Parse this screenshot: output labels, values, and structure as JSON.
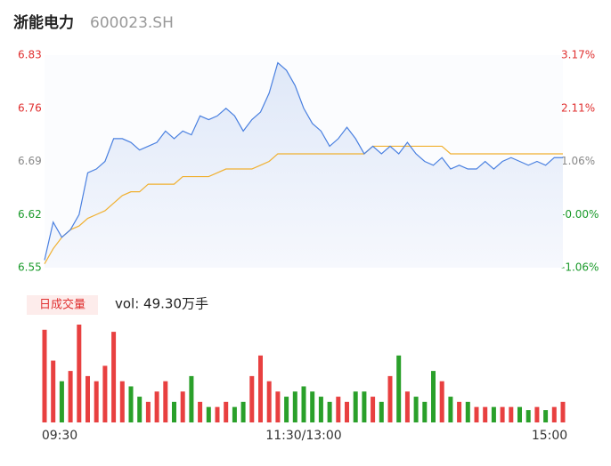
{
  "chart_data": [
    {
      "type": "line",
      "title": "浙能电力",
      "subtitle": "600023.SH",
      "ylim": [
        6.55,
        6.83
      ],
      "yticks": [
        6.55,
        6.62,
        6.69,
        6.76,
        6.83
      ],
      "ytick_colors": [
        "#1a9a2a",
        "#1a9a2a",
        "#888888",
        "#e03030",
        "#e03030"
      ],
      "y2lim": [
        6.55,
        6.83
      ],
      "y2ticks": [
        {
          "value": 6.55,
          "label": "-1.06%"
        },
        {
          "value": 6.62,
          "label": "-0.00%"
        },
        {
          "value": 6.69,
          "label": "1.06%"
        },
        {
          "value": 6.76,
          "label": "2.11%"
        },
        {
          "value": 6.83,
          "label": "3.17%"
        }
      ],
      "y2tick_colors": [
        "#1a9a2a",
        "#1a9a2a",
        "#888888",
        "#e03030",
        "#e03030"
      ],
      "series": [
        {
          "color": "#4a80e0",
          "values": [
            6.56,
            6.61,
            6.59,
            6.6,
            6.62,
            6.675,
            6.68,
            6.69,
            6.72,
            6.72,
            6.715,
            6.705,
            6.71,
            6.715,
            6.73,
            6.72,
            6.73,
            6.725,
            6.75,
            6.745,
            6.75,
            6.76,
            6.75,
            6.73,
            6.745,
            6.755,
            6.78,
            6.82,
            6.81,
            6.79,
            6.76,
            6.74,
            6.73,
            6.71,
            6.72,
            6.735,
            6.72,
            6.7,
            6.71,
            6.7,
            6.71,
            6.7,
            6.715,
            6.7,
            6.69,
            6.685,
            6.695,
            6.68,
            6.685,
            6.68,
            6.68,
            6.69,
            6.68,
            6.69,
            6.695,
            6.69,
            6.685,
            6.69,
            6.685,
            6.695,
            6.695
          ]
        },
        {
          "color": "#f0b030",
          "values": [
            6.555,
            6.575,
            6.59,
            6.6,
            6.605,
            6.615,
            6.62,
            6.625,
            6.635,
            6.645,
            6.65,
            6.65,
            6.66,
            6.66,
            6.66,
            6.66,
            6.67,
            6.67,
            6.67,
            6.67,
            6.675,
            6.68,
            6.68,
            6.68,
            6.68,
            6.685,
            6.69,
            6.7,
            6.7,
            6.7,
            6.7,
            6.7,
            6.7,
            6.7,
            6.7,
            6.7,
            6.7,
            6.7,
            6.71,
            6.71,
            6.71,
            6.71,
            6.71,
            6.71,
            6.71,
            6.71,
            6.71,
            6.7,
            6.7,
            6.7,
            6.7,
            6.7,
            6.7,
            6.7,
            6.7,
            6.7,
            6.7,
            6.7,
            6.7,
            6.7,
            6.7
          ]
        }
      ]
    },
    {
      "type": "bar",
      "tab": "日成交量",
      "label": "vol: 49.30万手",
      "up_color": "#e84040",
      "down_color": "#2aa02a",
      "categories": [
        "09:30",
        null,
        null,
        null,
        null,
        null,
        null,
        null,
        null,
        null,
        null,
        null,
        null,
        null,
        null,
        null,
        null,
        null,
        null,
        null,
        null,
        null,
        null,
        null,
        null,
        null,
        null,
        null,
        null,
        null,
        "11:30/13:00",
        null,
        null,
        null,
        null,
        null,
        null,
        null,
        null,
        null,
        null,
        null,
        null,
        null,
        null,
        null,
        null,
        null,
        null,
        null,
        null,
        null,
        null,
        null,
        null,
        null,
        null,
        null,
        null,
        null,
        "15:00"
      ],
      "values": [
        22500,
        15000,
        10000,
        12500,
        23750,
        11250,
        10000,
        13750,
        22000,
        10000,
        8750,
        6250,
        5000,
        7500,
        10000,
        5000,
        7500,
        11250,
        5000,
        3750,
        3750,
        5000,
        3750,
        5000,
        11250,
        16250,
        10000,
        7500,
        6250,
        7500,
        8750,
        7500,
        6250,
        5000,
        6250,
        5000,
        7500,
        7500,
        6250,
        5000,
        11250,
        16250,
        7500,
        6250,
        5000,
        12500,
        10000,
        6250,
        5000,
        5000,
        3750,
        3750,
        3750,
        3750,
        3750,
        3750,
        3000,
        3750,
        3000,
        3750,
        5000
      ]
    }
  ]
}
